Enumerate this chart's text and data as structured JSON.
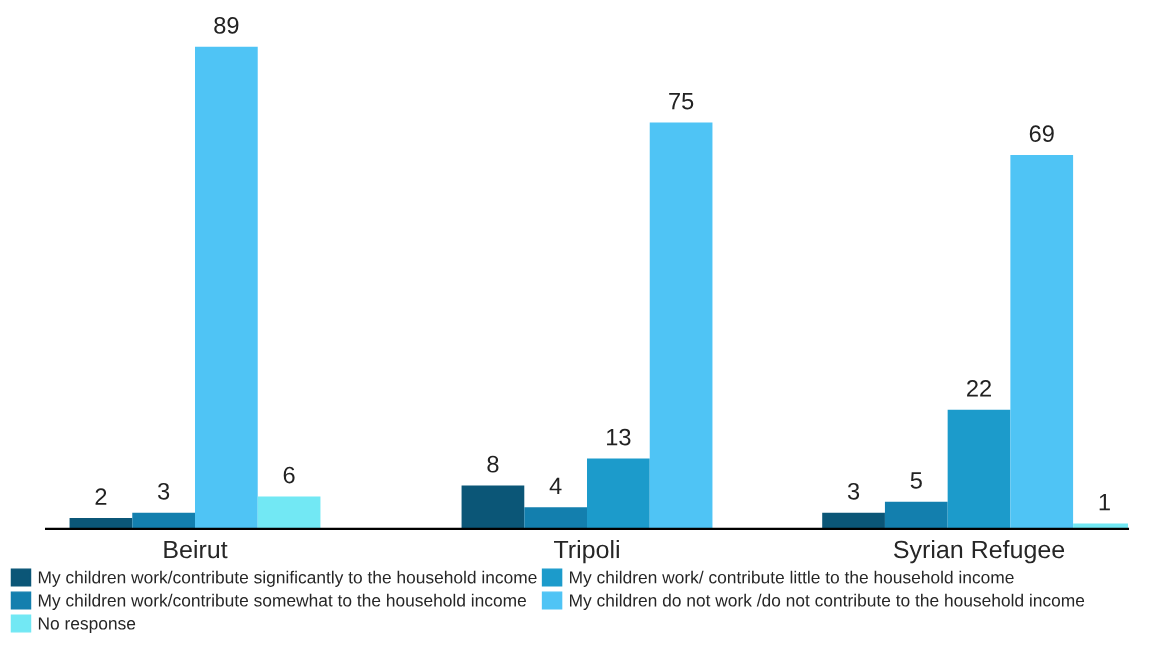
{
  "chart_data": {
    "type": "bar",
    "categories": [
      "Beirut",
      "Tripoli",
      "Syrian Refugee"
    ],
    "series": [
      {
        "name": "My children work/contribute significantly to the household income",
        "color": "#0b5677",
        "values": [
          2,
          8,
          3
        ]
      },
      {
        "name": "My children work/contribute somewhat to the household income",
        "color": "#137fae",
        "values": [
          3,
          4,
          5
        ]
      },
      {
        "name": "My children work/ contribute little to the household income",
        "color": "#1c9bcb",
        "values": [
          null,
          13,
          22
        ]
      },
      {
        "name": "My children do not work /do not contribute to the household income",
        "color": "#4fc4f5",
        "values": [
          89,
          75,
          69
        ]
      },
      {
        "name": "No response",
        "color": "#72e8f4",
        "values": [
          6,
          null,
          1
        ]
      }
    ],
    "data_labels": true,
    "legend": "bottom",
    "grid": false,
    "tick_labels": "x"
  }
}
